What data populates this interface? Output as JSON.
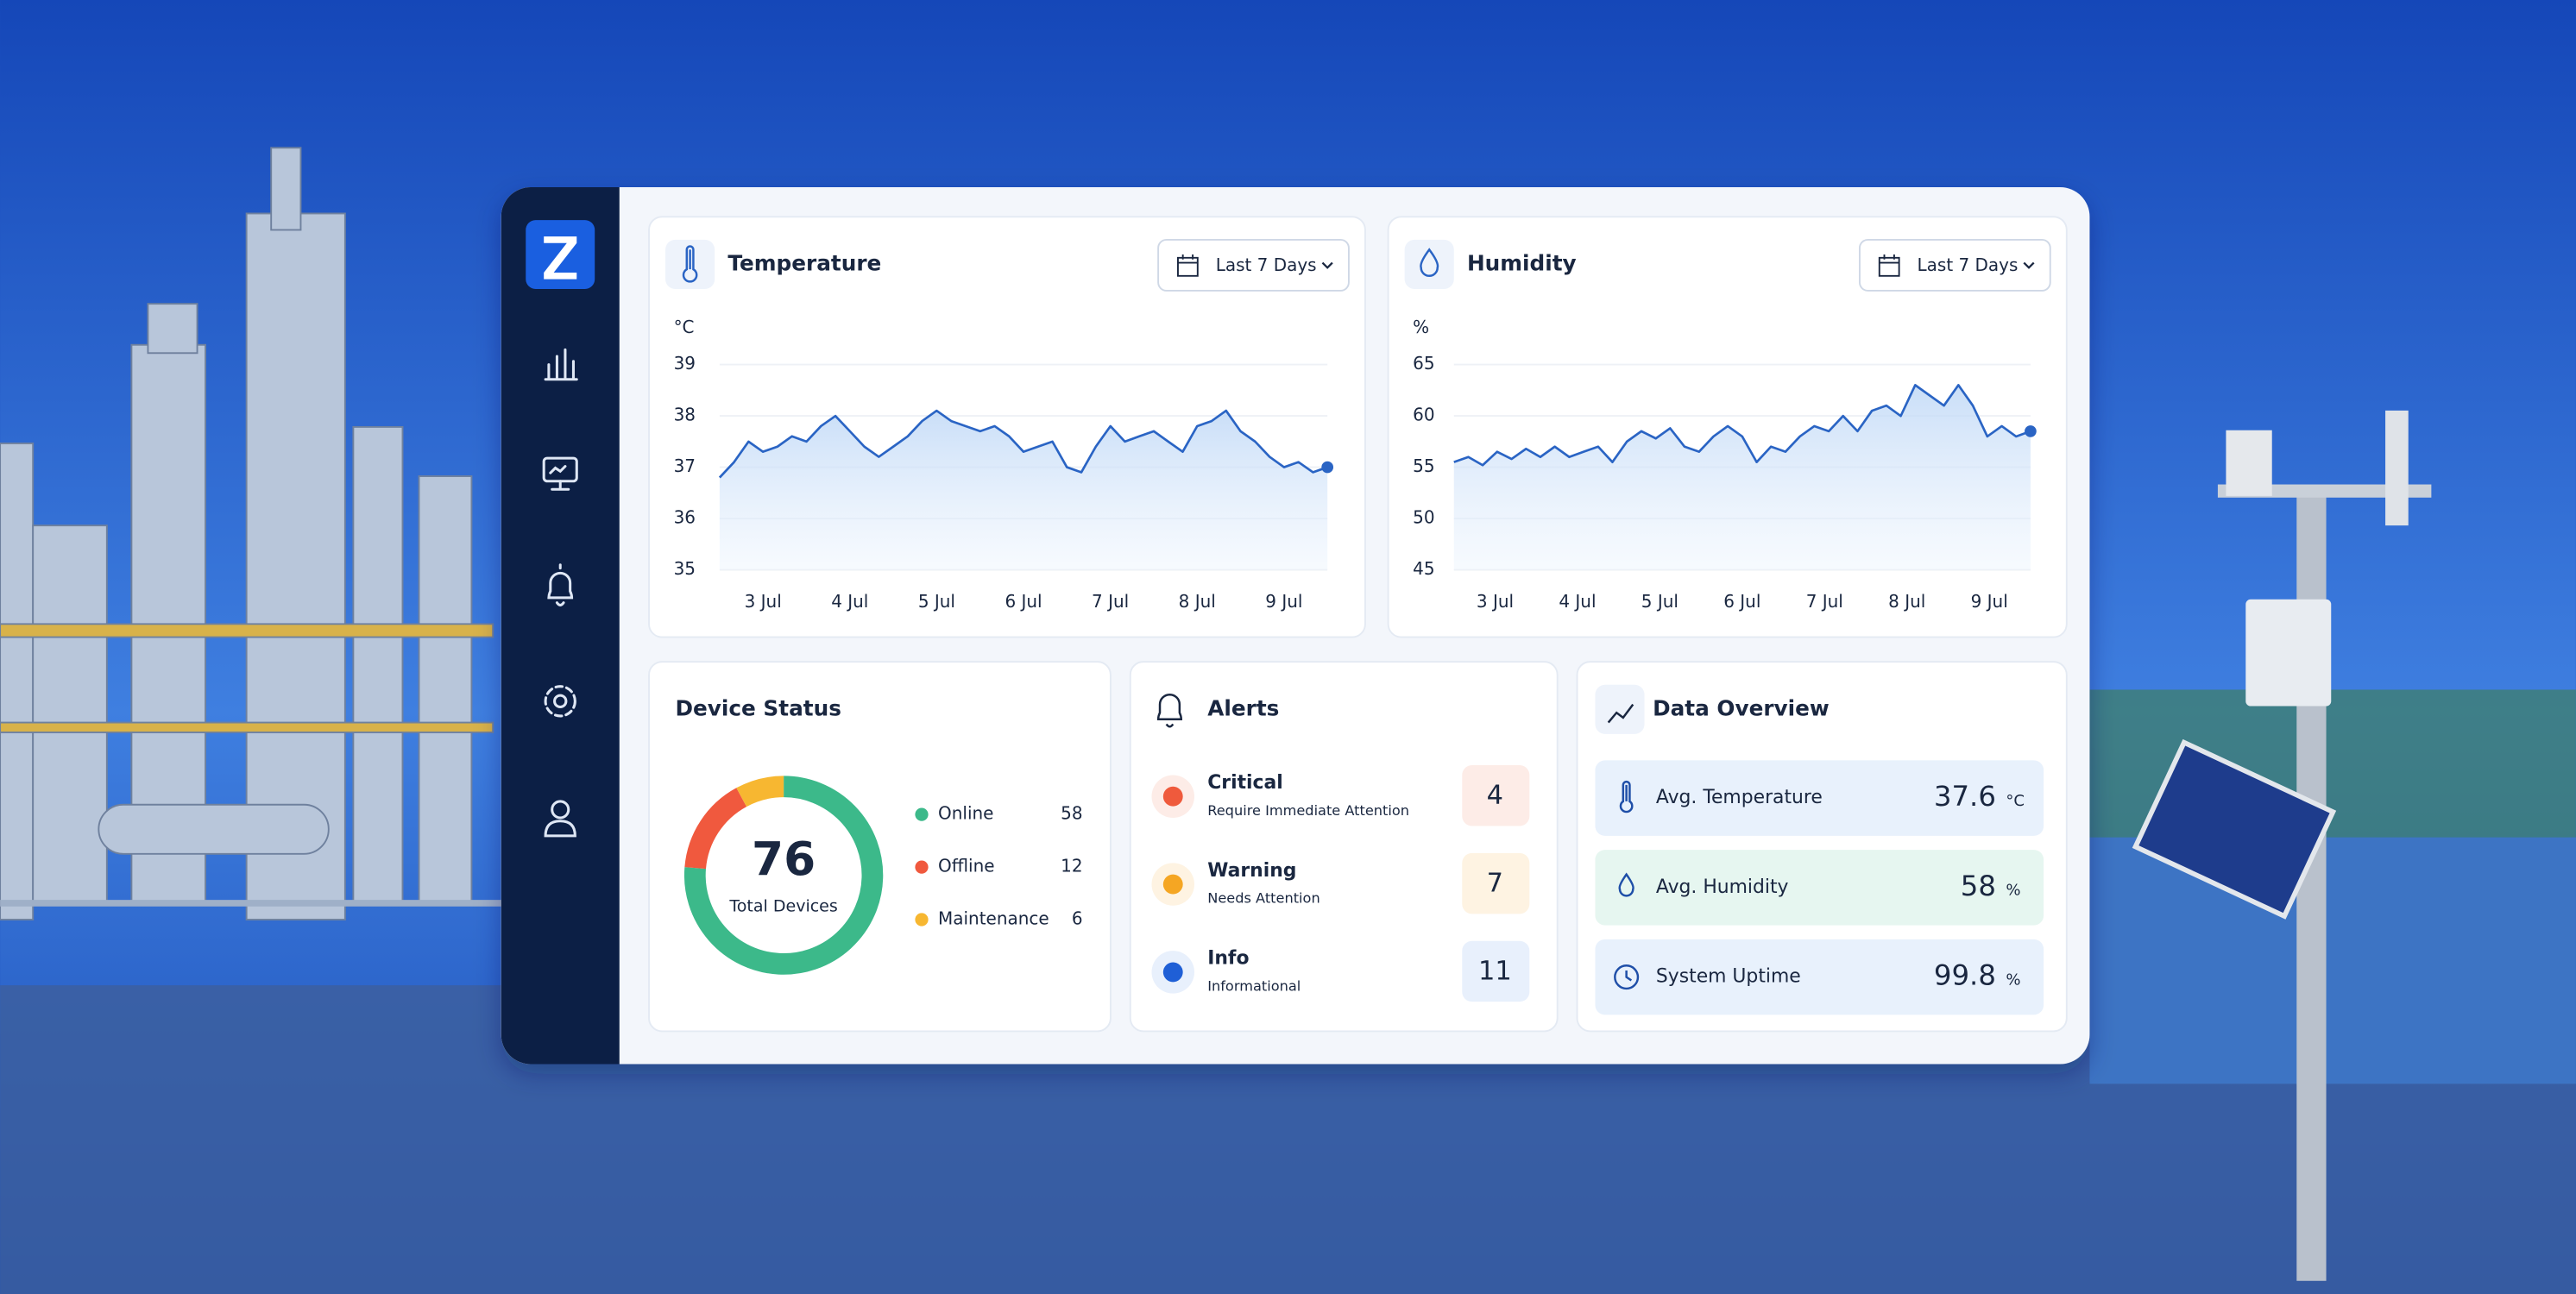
{
  "temperature": {
    "title": "Temperature",
    "range": "Last 7 Days",
    "unit": "°C",
    "color": "#2a64c4",
    "ylim": [
      35,
      39
    ],
    "yticks": [
      35,
      36,
      37,
      38,
      39
    ],
    "x_labels": [
      "3 Jul",
      "4 Jul",
      "5 Jul",
      "6 Jul",
      "7 Jul",
      "8 Jul",
      "9 Jul"
    ],
    "values": [
      36.8,
      37.1,
      37.5,
      37.3,
      37.4,
      37.6,
      37.5,
      37.8,
      38.0,
      37.7,
      37.4,
      37.2,
      37.4,
      37.6,
      37.9,
      38.1,
      37.9,
      37.8,
      37.7,
      37.8,
      37.6,
      37.3,
      37.4,
      37.5,
      37.0,
      36.9,
      37.4,
      37.8,
      37.5,
      37.6,
      37.7,
      37.5,
      37.3,
      37.8,
      37.9,
      38.1,
      37.7,
      37.5,
      37.2,
      37.0,
      37.1,
      36.9,
      37.0
    ]
  },
  "humidity": {
    "title": "Humidity",
    "range": "Last 7 Days",
    "unit": "%",
    "color": "#2a64c4",
    "ylim": [
      45,
      65
    ],
    "yticks": [
      45,
      50,
      55,
      60,
      65
    ],
    "x_labels": [
      "3 Jul",
      "4 Jul",
      "5 Jul",
      "6 Jul",
      "7 Jul",
      "8 Jul",
      "9 Jul"
    ],
    "values": [
      55.5,
      56,
      55.2,
      56.5,
      55.8,
      56.8,
      56,
      57,
      56,
      56.5,
      57,
      55.5,
      57.5,
      58.5,
      57.8,
      58.8,
      57,
      56.5,
      58,
      59,
      58,
      55.5,
      57,
      56.5,
      58,
      59,
      58.5,
      60,
      58.5,
      60.5,
      61,
      60,
      63,
      62,
      61,
      63,
      61,
      58,
      59,
      58,
      58.5
    ]
  },
  "device_status": {
    "title": "Device Status",
    "total": 76,
    "total_label": "Total Devices",
    "items": [
      {
        "name": "Online",
        "value": 58,
        "color": "#3cb98a"
      },
      {
        "name": "Offline",
        "value": 12,
        "color": "#f0593e"
      },
      {
        "name": "Maintenance",
        "value": 6,
        "color": "#f7b731"
      }
    ]
  },
  "alerts": {
    "title": "Alerts",
    "items": [
      {
        "name": "Critical",
        "description": "Require Immediate Attention",
        "count": 4,
        "color": "#ef5a3c"
      },
      {
        "name": "Warning",
        "description": "Needs Attention",
        "count": 7,
        "color": "#f5a623"
      },
      {
        "name": "Info",
        "description": "Informational",
        "count": 11,
        "color": "#1f5fd6"
      }
    ]
  },
  "data_overview": {
    "title": "Data Overview",
    "items": [
      {
        "name": "Avg. Temperature",
        "value": 37.6,
        "unit": "°C"
      },
      {
        "name": "Avg. Humidity",
        "value": 58,
        "unit": "%"
      },
      {
        "name": "System Uptime",
        "value": 99.8,
        "unit": "%"
      }
    ]
  }
}
